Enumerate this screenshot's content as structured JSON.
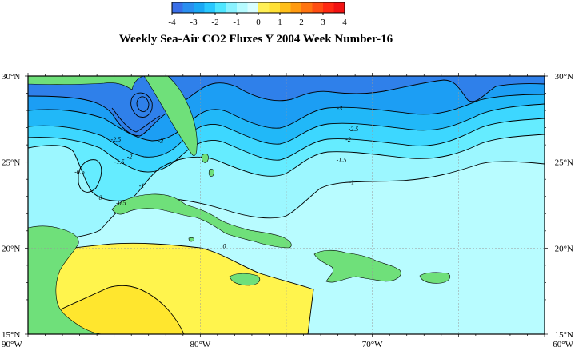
{
  "title": "Weekly Sea-Air CO2 Fluxes Y 2004 Week Number-16",
  "colorbar": {
    "ticks": [
      "-4",
      "-3",
      "-2",
      "-1",
      "0",
      "1",
      "2",
      "3",
      "4"
    ],
    "colors": [
      "#3a6fe8",
      "#2a8ff0",
      "#1aa8f5",
      "#28c8ff",
      "#4fe6ff",
      "#8af2ff",
      "#b6fbff",
      "#d8feff",
      "#ffef55",
      "#ffe034",
      "#ffbf1a",
      "#ff9a10",
      "#ff7410",
      "#ff4e12",
      "#ff2a12",
      "#f21212"
    ]
  },
  "axes": {
    "lon_labels": [
      "90°W",
      "80°W",
      "70°W",
      "60°W"
    ],
    "lat_labels": [
      "15°N",
      "20°N",
      "25°N",
      "30°N"
    ],
    "lon_range": [
      -90,
      -60
    ],
    "lat_range": [
      15,
      30
    ]
  },
  "contour_labels": [
    {
      "text": "-3",
      "lon": -71.9,
      "lat": 28.0
    },
    {
      "text": "-2.5",
      "lon": -71.1,
      "lat": 26.8
    },
    {
      "text": "-2",
      "lon": -71.4,
      "lat": 26.2
    },
    {
      "text": "-1.5",
      "lon": -71.8,
      "lat": 25.0
    },
    {
      "text": "-1",
      "lon": -71.2,
      "lat": 23.7
    },
    {
      "text": "-2.5",
      "lon": -84.9,
      "lat": 26.2
    },
    {
      "text": "-3",
      "lon": -82.3,
      "lat": 26.1
    },
    {
      "text": "-2",
      "lon": -84.1,
      "lat": 25.2
    },
    {
      "text": "-1.5",
      "lon": -84.7,
      "lat": 24.9
    },
    {
      "text": "-0.5",
      "lon": -87.0,
      "lat": 24.3
    },
    {
      "text": "-1",
      "lon": -83.4,
      "lat": 23.5
    },
    {
      "text": "-0.5",
      "lon": -84.6,
      "lat": 22.5
    },
    {
      "text": "0",
      "lon": -78.6,
      "lat": 20.0
    },
    {
      "text": "0",
      "lon": -85.8,
      "lat": 22.8
    }
  ],
  "colors": {
    "land": "#6fe07a",
    "band_lt_m3": "#2f80ea",
    "band_m3_m25": "#1c9ef4",
    "band_m25_m2": "#21b8f8",
    "band_m2_m15": "#3dd7ff",
    "band_m15_m1": "#65ecff",
    "band_m1_m05": "#9cf7ff",
    "band_m05_0": "#b8fcff",
    "band_0_05": "#fff44d",
    "band_05_1": "#ffe62e"
  }
}
